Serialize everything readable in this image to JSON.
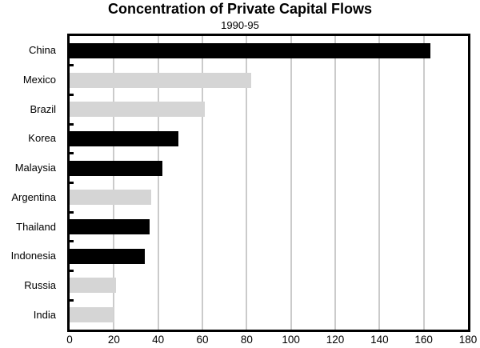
{
  "chart": {
    "title": "Concentration of Private Capital Flows",
    "subtitle": "1990-95"
  },
  "chart_data": {
    "type": "bar",
    "orientation": "horizontal",
    "title": "Concentration of Private Capital Flows",
    "subtitle": "1990-95",
    "categories": [
      "China",
      "Mexico",
      "Brazil",
      "Korea",
      "Malaysia",
      "Argentina",
      "Thailand",
      "Indonesia",
      "Russia",
      "India"
    ],
    "values": [
      163,
      82,
      61,
      49,
      42,
      37,
      36,
      34,
      21,
      20
    ],
    "bar_colors": [
      "#000000",
      "#d5d5d5",
      "#d5d5d5",
      "#000000",
      "#000000",
      "#d5d5d5",
      "#000000",
      "#000000",
      "#d5d5d5",
      "#d5d5d5"
    ],
    "xlabel": "",
    "ylabel": "",
    "xlim": [
      0,
      180
    ],
    "x_ticks": [
      0,
      20,
      40,
      60,
      80,
      100,
      120,
      140,
      160,
      180
    ],
    "grid": true,
    "gridline_color": "#cbcbcb",
    "plot_border_color": "#000000",
    "legend": "none"
  }
}
